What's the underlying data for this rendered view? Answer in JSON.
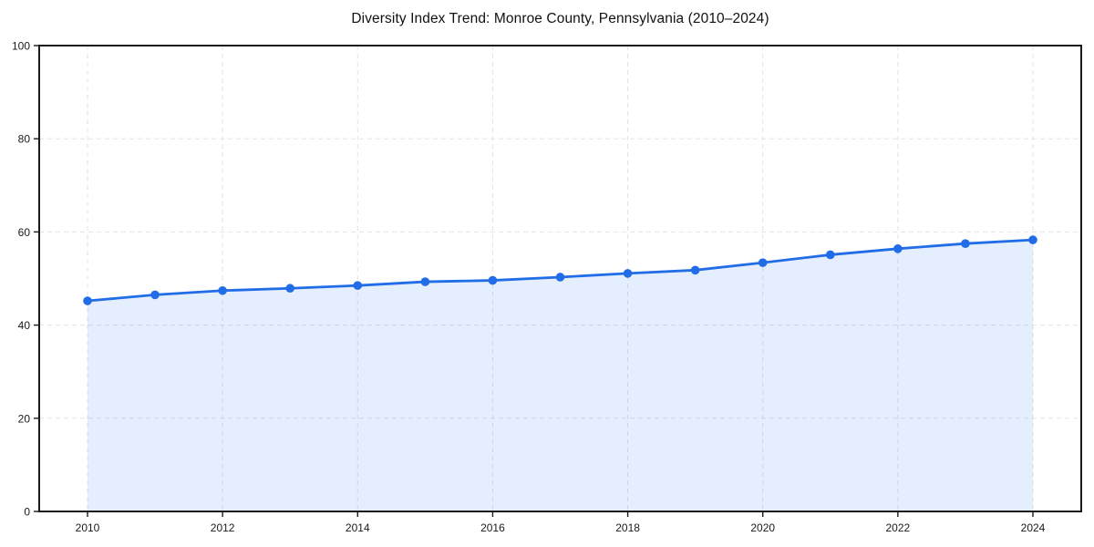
{
  "title": "Diversity Index Trend: Monroe County, Pennsylvania (2010–2024)",
  "chart_data": {
    "type": "line",
    "title": "Diversity Index Trend: Monroe County, Pennsylvania (2010–2024)",
    "series_name": "Diversity Index",
    "x": [
      2010,
      2011,
      2012,
      2013,
      2014,
      2015,
      2016,
      2017,
      2018,
      2019,
      2020,
      2021,
      2022,
      2023,
      2024
    ],
    "values": [
      45.2,
      46.5,
      47.4,
      47.9,
      48.5,
      49.3,
      49.6,
      50.3,
      51.1,
      51.8,
      53.4,
      55.1,
      56.4,
      57.5,
      58.3
    ],
    "xlabel": "",
    "ylabel": "",
    "ylim": [
      0,
      100
    ],
    "yticks": [
      0,
      20,
      40,
      60,
      80,
      100
    ],
    "xticks": [
      2010,
      2012,
      2014,
      2016,
      2018,
      2020,
      2022,
      2024
    ],
    "grid": true,
    "grid_style": "dashed",
    "legend_position": "none",
    "area_fill": true,
    "marker": "circle"
  },
  "colors": {
    "line": "#216de7",
    "marker": "#216de7",
    "area_fill": "rgba(34,113,230,0.12)",
    "grid": "#e3e3e3",
    "spine": "#1a1a1a",
    "tick_text": "#1a1a1a",
    "background": "#ffffff"
  }
}
